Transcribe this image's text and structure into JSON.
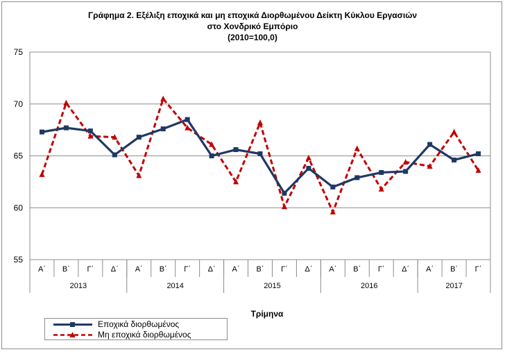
{
  "chart_data": {
    "type": "line",
    "title": "Γράφημα 2. Εξέλιξη εποχικά και μη εποχικά Διορθωμένου Δείκτη Κύκλου Εργασιών",
    "subtitle_line2": "στο Χονδρικό Εμπόριο",
    "subtitle_line3": "(2010=100,0)",
    "xlabel": "Τρίμηνα",
    "ylabel": "",
    "ylim": [
      55,
      75
    ],
    "yticks": [
      55,
      60,
      65,
      70,
      75
    ],
    "grid": "horizontal",
    "legend_position": "bottom-left",
    "categories": [
      "Α΄",
      "Β΄",
      "Γ΄",
      "Δ΄",
      "Α΄",
      "Β΄",
      "Γ΄",
      "Δ΄",
      "Α΄",
      "Β΄",
      "Γ΄",
      "Δ΄",
      "Α΄",
      "Β΄",
      "Γ΄",
      "Δ΄",
      "Α΄",
      "Β΄",
      "Γ΄"
    ],
    "years": [
      {
        "label": "2013",
        "quarters": 4
      },
      {
        "label": "2014",
        "quarters": 4
      },
      {
        "label": "2015",
        "quarters": 4
      },
      {
        "label": "2016",
        "quarters": 4
      },
      {
        "label": "2017",
        "quarters": 3
      }
    ],
    "series": [
      {
        "name": "Εποχικά διορθωμένος",
        "color": "#1f3864",
        "style": "solid",
        "marker": "square",
        "values": [
          67.3,
          67.7,
          67.4,
          65.1,
          66.8,
          67.6,
          68.5,
          65.0,
          65.6,
          65.2,
          61.4,
          63.8,
          62.0,
          62.9,
          63.4,
          63.5,
          66.1,
          64.6,
          65.2
        ]
      },
      {
        "name": "Μη εποχικά διορθωμένος",
        "color": "#c00000",
        "style": "dashed",
        "marker": "triangle",
        "values": [
          63.2,
          70.1,
          66.9,
          66.8,
          63.1,
          70.5,
          67.7,
          66.1,
          62.5,
          68.2,
          60.1,
          64.8,
          59.6,
          65.7,
          61.8,
          64.4,
          64.0,
          67.3,
          63.6
        ]
      }
    ]
  }
}
